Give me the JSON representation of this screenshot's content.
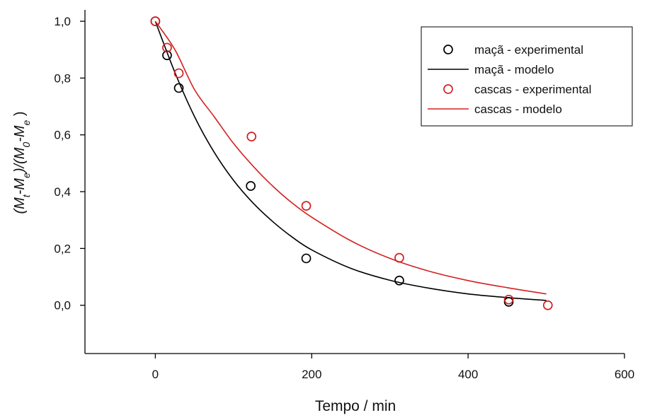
{
  "chart_data": {
    "type": "scatter",
    "title": "",
    "xlabel": "Tempo / min",
    "ylabel": {
      "parts": [
        {
          "t": "(M",
          "s": "n"
        },
        {
          "t": "t",
          "s": "sub"
        },
        {
          "t": "-M",
          "s": "n"
        },
        {
          "t": "e",
          "s": "sub"
        },
        {
          "t": ")/(M",
          "s": "n"
        },
        {
          "t": "0",
          "s": "sub"
        },
        {
          "t": "-M",
          "s": "n"
        },
        {
          "t": "e",
          "s": "sub"
        },
        {
          "t": " )",
          "s": "n"
        }
      ]
    },
    "xlim": [
      -90,
      600
    ],
    "ylim": [
      -0.17,
      1.04
    ],
    "x_ticks": [
      0,
      200,
      400,
      600
    ],
    "x_tick_labels": [
      "0",
      "200",
      "400",
      "600"
    ],
    "y_ticks": [
      0.0,
      0.2,
      0.4,
      0.6,
      0.8,
      1.0
    ],
    "y_tick_labels": [
      "0,0",
      "0,2",
      "0,4",
      "0,6",
      "0,8",
      "1,0"
    ],
    "grid": false,
    "legend_position": "top-right",
    "series": [
      {
        "name": "maçã - experimental",
        "kind": "scatter",
        "color": "#000000",
        "points": [
          [
            0,
            1.0
          ],
          [
            15,
            0.88
          ],
          [
            30,
            0.765
          ],
          [
            122,
            0.42
          ],
          [
            193,
            0.165
          ],
          [
            312,
            0.087
          ],
          [
            452,
            0.012
          ]
        ]
      },
      {
        "name": "maçã - modelo",
        "kind": "line",
        "color": "#000000",
        "points": [
          [
            0,
            1.0
          ],
          [
            25,
            0.82
          ],
          [
            50,
            0.665
          ],
          [
            75,
            0.54
          ],
          [
            100,
            0.44
          ],
          [
            125,
            0.36
          ],
          [
            150,
            0.295
          ],
          [
            175,
            0.24
          ],
          [
            200,
            0.195
          ],
          [
            250,
            0.13
          ],
          [
            300,
            0.088
          ],
          [
            350,
            0.06
          ],
          [
            400,
            0.04
          ],
          [
            450,
            0.027
          ],
          [
            500,
            0.017
          ]
        ]
      },
      {
        "name": "cascas - experimental",
        "kind": "scatter",
        "color": "#d42020",
        "points": [
          [
            0,
            1.0
          ],
          [
            15,
            0.907
          ],
          [
            30,
            0.817
          ],
          [
            123,
            0.594
          ],
          [
            193,
            0.35
          ],
          [
            312,
            0.167
          ],
          [
            452,
            0.02
          ],
          [
            502,
            0.0
          ]
        ]
      },
      {
        "name": "cascas - modelo",
        "kind": "line",
        "color": "#d42020",
        "points": [
          [
            0,
            1.0
          ],
          [
            25,
            0.9
          ],
          [
            50,
            0.76
          ],
          [
            75,
            0.665
          ],
          [
            100,
            0.57
          ],
          [
            125,
            0.49
          ],
          [
            150,
            0.42
          ],
          [
            175,
            0.36
          ],
          [
            200,
            0.31
          ],
          [
            250,
            0.227
          ],
          [
            300,
            0.165
          ],
          [
            350,
            0.12
          ],
          [
            400,
            0.087
          ],
          [
            450,
            0.062
          ],
          [
            500,
            0.04
          ]
        ]
      }
    ]
  }
}
